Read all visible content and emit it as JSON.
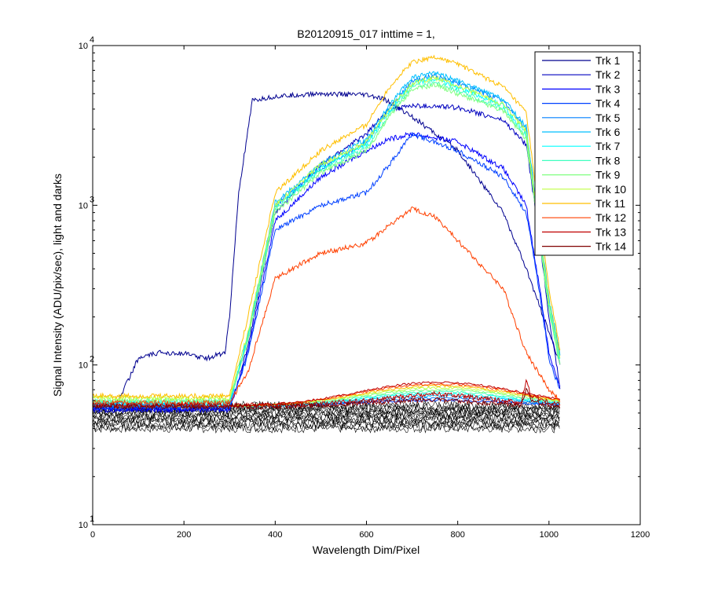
{
  "chart_data": {
    "type": "line",
    "title": "B20120915_017 inttime = 1,",
    "xlabel": "Wavelength Dim/Pixel",
    "ylabel": "Signal Intensity (ADU/pix/sec), light and darks",
    "xlim": [
      0,
      1200
    ],
    "ylim": [
      10,
      10000
    ],
    "yscale": "log",
    "x_ticks": [
      0,
      200,
      400,
      600,
      800,
      1000,
      1200
    ],
    "y_ticks": [
      {
        "base": "10",
        "exp": "1",
        "value": 10
      },
      {
        "base": "10",
        "exp": "2",
        "value": 100
      },
      {
        "base": "10",
        "exp": "3",
        "value": 1000
      },
      {
        "base": "10",
        "exp": "4",
        "value": 10000
      }
    ],
    "grid": false,
    "legend_position": "top-right",
    "series": [
      {
        "name": "Trk 1",
        "color": "#00008f",
        "x": [
          0,
          50,
          100,
          150,
          200,
          250,
          290,
          300,
          320,
          350,
          400,
          500,
          600,
          640,
          700,
          800,
          900,
          950,
          1000,
          1025
        ],
        "y": [
          55,
          55,
          110,
          120,
          118,
          110,
          120,
          200,
          1200,
          4500,
          4800,
          5000,
          4900,
          4600,
          3600,
          2200,
          900,
          400,
          160,
          100
        ]
      },
      {
        "name": "Trk 2",
        "color": "#0000bf",
        "x": [
          0,
          50,
          300,
          340,
          400,
          500,
          600,
          650,
          700,
          800,
          900,
          950,
          980,
          1000,
          1025
        ],
        "y": [
          52,
          52,
          52,
          130,
          900,
          1800,
          2800,
          4000,
          4200,
          4100,
          3400,
          2400,
          600,
          200,
          70
        ]
      },
      {
        "name": "Trk 3",
        "color": "#0000ff",
        "x": [
          0,
          50,
          300,
          340,
          400,
          500,
          600,
          650,
          700,
          800,
          900,
          950,
          980,
          1000,
          1025
        ],
        "y": [
          53,
          53,
          53,
          120,
          800,
          1500,
          2200,
          2600,
          2800,
          2500,
          1700,
          1000,
          300,
          120,
          70
        ]
      },
      {
        "name": "Trk 4",
        "color": "#0040ff",
        "x": [
          0,
          50,
          300,
          340,
          400,
          500,
          600,
          650,
          700,
          800,
          900,
          950,
          980,
          1000,
          1025
        ],
        "y": [
          54,
          54,
          54,
          115,
          700,
          1000,
          1200,
          1800,
          2800,
          2200,
          1500,
          900,
          280,
          110,
          68
        ]
      },
      {
        "name": "Trk 5",
        "color": "#0080ff",
        "x": [
          0,
          50,
          300,
          340,
          400,
          500,
          600,
          650,
          700,
          750,
          800,
          900,
          950,
          1000,
          1025
        ],
        "y": [
          56,
          56,
          56,
          150,
          1000,
          1700,
          2500,
          4000,
          6000,
          6500,
          5800,
          4500,
          3000,
          250,
          110
        ]
      },
      {
        "name": "Trk 6",
        "color": "#00bfff",
        "x": [
          0,
          50,
          300,
          340,
          400,
          500,
          600,
          650,
          700,
          750,
          800,
          900,
          950,
          1000,
          1025
        ],
        "y": [
          57,
          57,
          57,
          155,
          1050,
          1800,
          2600,
          4200,
          6300,
          6800,
          6000,
          4600,
          3100,
          260,
          115
        ]
      },
      {
        "name": "Trk 7",
        "color": "#00ffff",
        "x": [
          0,
          50,
          300,
          340,
          400,
          500,
          600,
          650,
          700,
          750,
          800,
          900,
          950,
          1000,
          1025
        ],
        "y": [
          58,
          58,
          58,
          150,
          980,
          1700,
          2400,
          3900,
          5800,
          6200,
          5500,
          4200,
          2800,
          240,
          105
        ]
      },
      {
        "name": "Trk 8",
        "color": "#40ffbf",
        "x": [
          0,
          50,
          300,
          340,
          400,
          500,
          600,
          650,
          700,
          750,
          800,
          900,
          950,
          1000,
          1025
        ],
        "y": [
          59,
          59,
          59,
          145,
          950,
          1650,
          2300,
          3700,
          5500,
          5900,
          5200,
          4000,
          2700,
          230,
          100
        ]
      },
      {
        "name": "Trk 9",
        "color": "#80ff80",
        "x": [
          0,
          50,
          300,
          340,
          400,
          500,
          600,
          650,
          700,
          750,
          800,
          900,
          950,
          1000,
          1025
        ],
        "y": [
          60,
          60,
          60,
          140,
          900,
          1600,
          2200,
          3600,
          5300,
          5700,
          5000,
          3900,
          2600,
          220,
          95
        ]
      },
      {
        "name": "Trk 10",
        "color": "#bfff40",
        "x": [
          0,
          50,
          300,
          340,
          400,
          500,
          600,
          650,
          700,
          750,
          800,
          900,
          950,
          1000,
          1025
        ],
        "y": [
          62,
          62,
          62,
          160,
          1000,
          1800,
          2500,
          4000,
          5800,
          6300,
          5600,
          4300,
          2900,
          250,
          110
        ]
      },
      {
        "name": "Trk 11",
        "color": "#ffbf00",
        "x": [
          0,
          50,
          300,
          340,
          400,
          500,
          600,
          650,
          700,
          750,
          800,
          900,
          950,
          1000,
          1025
        ],
        "y": [
          64,
          64,
          64,
          200,
          1200,
          2200,
          3200,
          5500,
          7900,
          8500,
          7700,
          5500,
          3800,
          300,
          120
        ]
      },
      {
        "name": "Trk 12",
        "color": "#ff4000",
        "x": [
          0,
          50,
          300,
          340,
          400,
          500,
          600,
          650,
          700,
          750,
          800,
          900,
          950,
          1000,
          1025
        ],
        "y": [
          58,
          58,
          58,
          90,
          350,
          500,
          580,
          750,
          950,
          850,
          600,
          300,
          120,
          70,
          60
        ]
      },
      {
        "name": "Trk 13",
        "color": "#bf0000",
        "x": [
          0,
          50,
          300,
          340,
          400,
          500,
          600,
          650,
          700,
          750,
          800,
          900,
          940,
          950,
          960,
          1000,
          1025
        ],
        "y": [
          56,
          56,
          56,
          56,
          56,
          57,
          60,
          62,
          64,
          66,
          64,
          60,
          58,
          80,
          65,
          58,
          57
        ]
      },
      {
        "name": "Trk 14",
        "color": "#800000",
        "x": [
          0,
          50,
          300,
          340,
          400,
          500,
          600,
          650,
          700,
          750,
          800,
          900,
          940,
          950,
          960,
          1000,
          1025
        ],
        "y": [
          55,
          55,
          55,
          55,
          55,
          56,
          58,
          59,
          60,
          61,
          59,
          57,
          56,
          70,
          60,
          56,
          55
        ]
      }
    ],
    "dark_traces": {
      "color": "#000000",
      "count": 14,
      "x_range": [
        0,
        1025
      ],
      "y_range": [
        40,
        56
      ]
    },
    "light_baseline_bumps": {
      "x_range": [
        0,
        1025
      ],
      "peak_x": 760,
      "peak_y_values": [
        60,
        62,
        64,
        66,
        68,
        70,
        72,
        74,
        76,
        78
      ]
    }
  }
}
